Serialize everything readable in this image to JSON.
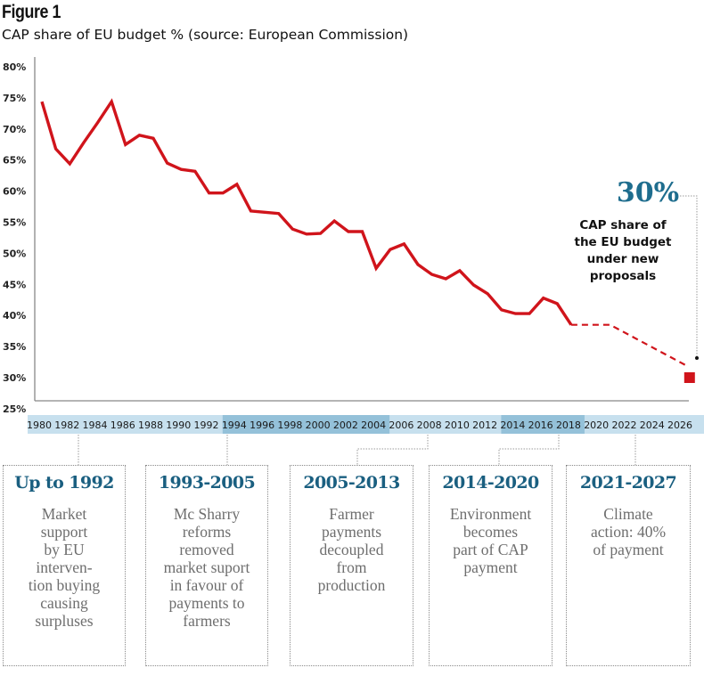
{
  "figure_label": "Figure 1",
  "subtitle": "CAP share of EU budget % (source: European Commission)",
  "colors": {
    "line": "#d0141b",
    "axis": "#888888",
    "band_light": "#c7e0ee",
    "band_dark": "#94c1d9",
    "accent_text": "#1e6d8e"
  },
  "chart_data": {
    "type": "line",
    "title": "CAP share of EU budget % (source: European Commission)",
    "xlabel": "",
    "ylabel": "",
    "ylim": [
      25,
      80
    ],
    "xlim": [
      1980,
      2026
    ],
    "grid": false,
    "y_ticks": [
      "80%",
      "75%",
      "70%",
      "65%",
      "60%",
      "55%",
      "50%",
      "45%",
      "40%",
      "35%",
      "30%",
      "25%"
    ],
    "y_tick_values": [
      80,
      75,
      70,
      65,
      60,
      55,
      50,
      45,
      40,
      35,
      30,
      25
    ],
    "x_ticks": [
      "1980",
      "1982",
      "1984",
      "1986",
      "1988",
      "1990",
      "1992",
      "1994",
      "1996",
      "1998",
      "2000",
      "2002",
      "2004",
      "2006",
      "2008",
      "2010",
      "2012",
      "2014",
      "2016",
      "2018",
      "2020",
      "2022",
      "2024",
      "2026"
    ],
    "highlighted_x_ranges": [
      [
        1994,
        2004
      ],
      [
        2014,
        2018
      ]
    ],
    "series": [
      {
        "name": "CAP share (actual)",
        "style": "solid",
        "x": [
          1980,
          1981,
          1982,
          1983,
          1984,
          1985,
          1986,
          1987,
          1988,
          1989,
          1990,
          1991,
          1992,
          1993,
          1994,
          1995,
          1996,
          1997,
          1998,
          1999,
          2000,
          2001,
          2002,
          2003,
          2004,
          2005,
          2006,
          2007,
          2008,
          2009,
          2010,
          2011,
          2012,
          2013,
          2014,
          2015,
          2016,
          2017,
          2018
        ],
        "values": [
          74.4,
          66.8,
          64.4,
          67.8,
          71.0,
          74.4,
          67.5,
          69.0,
          68.5,
          64.5,
          63.5,
          63.2,
          59.7,
          59.7,
          61.1,
          56.8,
          56.6,
          56.4,
          53.9,
          53.1,
          53.2,
          55.2,
          53.5,
          53.5,
          47.6,
          50.6,
          51.5,
          48.2,
          46.6,
          45.9,
          47.2,
          44.9,
          43.5,
          40.9,
          40.3,
          40.3,
          42.8,
          41.9,
          38.5
        ]
      },
      {
        "name": "CAP share (projected)",
        "style": "dashed",
        "x": [
          2018,
          2020.8,
          2026.3
        ],
        "values": [
          38.5,
          38.5,
          31.9
        ]
      }
    ],
    "marker": {
      "x": 2026.5,
      "value": 30,
      "shape": "square"
    },
    "annotation": {
      "value": "30%",
      "text": [
        "CAP share of",
        "the EU budget",
        "under new",
        "proposals"
      ]
    }
  },
  "eras": [
    {
      "title": "Up to 1992",
      "description": "Market\nsupport\nby EU\ninterven-\ntion buying\ncausing\nsurpluses"
    },
    {
      "title": "1993-2005",
      "description": "Mc Sharry\nreforms\nremoved\nmarket suport\nin favour of\npayments to\nfarmers"
    },
    {
      "title": "2005-2013",
      "description": "Farmer\npayments\ndecoupled\nfrom\nproduction"
    },
    {
      "title": "2014-2020",
      "description": "Environment\nbecomes\npart of CAP\npayment"
    },
    {
      "title": "2021-2027",
      "description": "Climate\naction: 40%\nof payment"
    }
  ]
}
